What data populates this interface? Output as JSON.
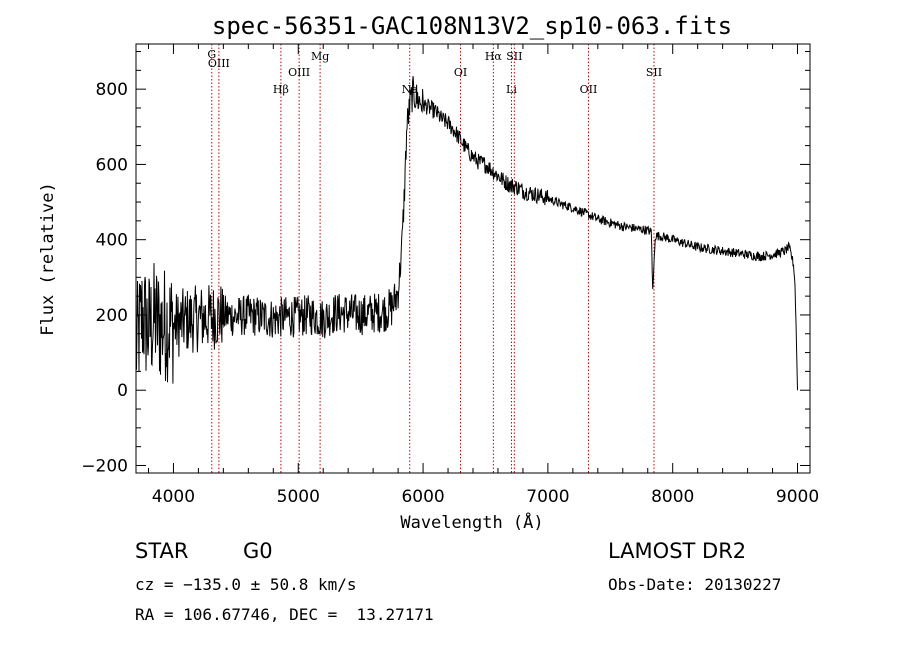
{
  "chart_data": {
    "type": "line",
    "title": "spec-56351-GAC108N13V2_sp10-063.fits",
    "xlabel": "Wavelength (Å)",
    "ylabel": "Flux (relative)",
    "xlim": [
      3700,
      9100
    ],
    "ylim": [
      -220,
      920
    ],
    "xticks": [
      4000,
      5000,
      6000,
      7000,
      8000,
      9000
    ],
    "yticks": [
      -200,
      0,
      200,
      400,
      600,
      800
    ],
    "x_tick_labels": [
      "4000",
      "5000",
      "6000",
      "7000",
      "8000",
      "9000"
    ],
    "y_tick_labels": [
      "−200",
      "0",
      "200",
      "400",
      "600",
      "800"
    ],
    "line_color": "#000000",
    "marker_color": "#cc0000",
    "grid": false,
    "series": [
      {
        "x": [
          3700,
          3750,
          3800,
          3850,
          3900,
          3950,
          4000,
          4100,
          4200,
          4300,
          4400,
          4500,
          4600,
          4700,
          4800,
          4900,
          5000,
          5100,
          5200,
          5300,
          5400,
          5500,
          5600,
          5700,
          5750,
          5800,
          5830,
          5850,
          5870,
          5900,
          5920,
          5950,
          6000,
          6050,
          6100,
          6150,
          6200,
          6250,
          6300,
          6350,
          6400,
          6450,
          6500,
          6550,
          6600,
          6650,
          6700,
          6750,
          6800,
          6850,
          6900,
          6950,
          7000,
          7100,
          7200,
          7300,
          7400,
          7500,
          7600,
          7700,
          7800,
          7830,
          7840,
          7850,
          7860,
          7900,
          8000,
          8100,
          8200,
          8300,
          8400,
          8500,
          8600,
          8700,
          8800,
          8900,
          8930,
          8950,
          8970,
          8980,
          8990,
          9000
        ],
        "y": [
          110,
          200,
          160,
          190,
          170,
          180,
          170,
          185,
          190,
          195,
          200,
          195,
          200,
          195,
          190,
          195,
          195,
          200,
          190,
          205,
          205,
          200,
          205,
          210,
          220,
          260,
          380,
          520,
          700,
          770,
          790,
          775,
          760,
          750,
          740,
          720,
          710,
          690,
          665,
          640,
          620,
          605,
          600,
          585,
          570,
          555,
          545,
          540,
          530,
          525,
          520,
          515,
          510,
          495,
          485,
          470,
          455,
          445,
          435,
          430,
          425,
          420,
          260,
          330,
          410,
          410,
          400,
          390,
          380,
          375,
          370,
          365,
          360,
          355,
          360,
          370,
          380,
          360,
          330,
          280,
          150,
          0
        ]
      }
    ],
    "lines": [
      {
        "label": "G",
        "x": 4307
      },
      {
        "label": "OIII",
        "x": 4364
      },
      {
        "label": "Hβ",
        "x": 4861
      },
      {
        "label": "OIII",
        "x": 5007
      },
      {
        "label": "Mg",
        "x": 5175
      },
      {
        "label": "Na",
        "x": 5893
      },
      {
        "label": "OI",
        "x": 6300
      },
      {
        "label": "Hα",
        "x": 6563
      },
      {
        "label": "Li",
        "x": 6708
      },
      {
        "label": "SII",
        "x": 6731
      },
      {
        "label": "OII",
        "x": 7325
      },
      {
        "label": "SII",
        "x": 7850
      }
    ]
  },
  "info": {
    "class": "STAR",
    "subclass": "G0",
    "survey": "LAMOST DR2",
    "cz": "cz = −135.0 ± 50.8 km/s",
    "obs_date": "Obs-Date: 20130227",
    "coords": "RA = 106.67746, DEC =  13.27171"
  }
}
